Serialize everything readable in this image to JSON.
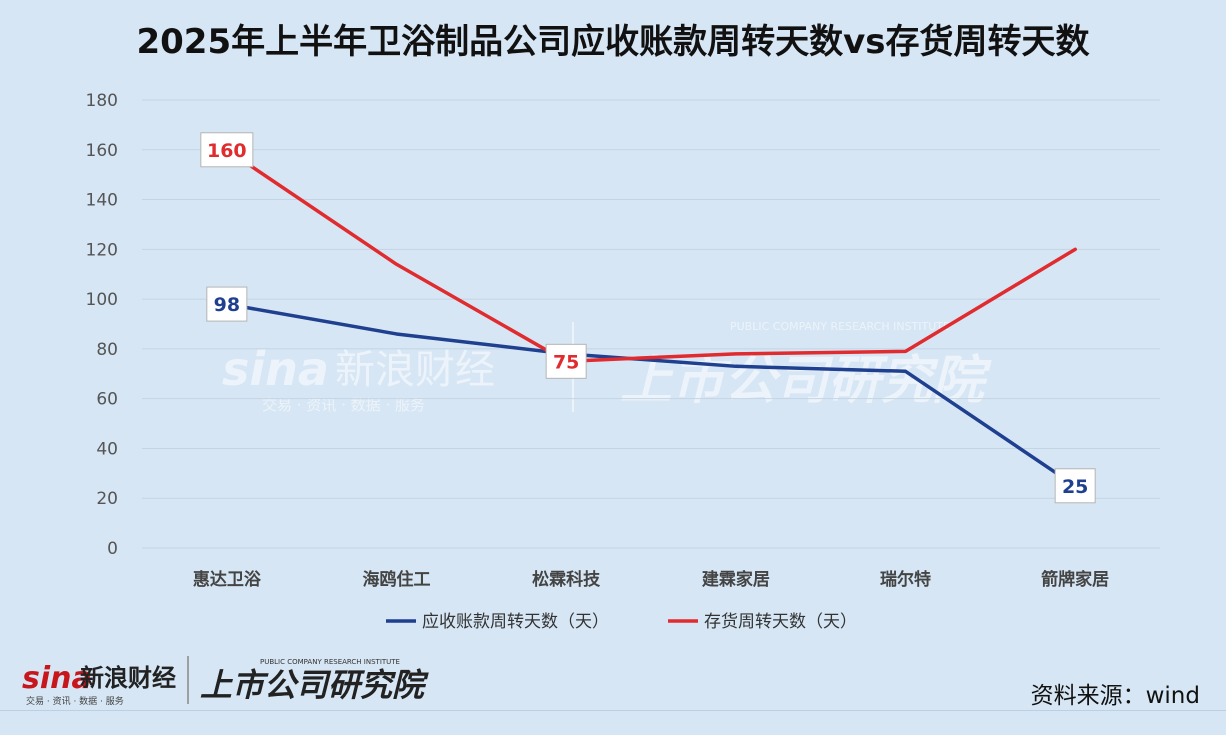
{
  "title": "2025年上半年卫浴制品公司应收账款周转天数vs存货周转天数",
  "source": "资料来源：wind",
  "watermark": {
    "sina_logo": "sina",
    "sina_name": "新浪财经",
    "sina_tagline": "交易 · 资讯 · 数据 · 服务",
    "institute_name": "上市公司研究院",
    "institute_en": "PUBLIC COMPANY RESEARCH INSTITUTE"
  },
  "colors": {
    "receivable": "#1f3f8f",
    "inventory": "#e02b2f",
    "background": "#d6e6f4",
    "grid": "#c3d4e4"
  },
  "chart_data": {
    "type": "line",
    "title": "2025年上半年卫浴制品公司应收账款周转天数vs存货周转天数",
    "categories": [
      "惠达卫浴",
      "海鸥住工",
      "松霖科技",
      "建霖家居",
      "瑞尔特",
      "箭牌家居"
    ],
    "ylim": [
      0,
      180
    ],
    "yticks": [
      0,
      20,
      40,
      60,
      80,
      100,
      120,
      140,
      160,
      180
    ],
    "grid": "horizontal",
    "legend": "bottom",
    "series": [
      {
        "name": "应收账款周转天数（天）",
        "color": "#1f3f8f",
        "values": [
          98,
          86,
          78,
          73,
          71,
          25
        ],
        "labeled_indices": [
          0,
          5
        ]
      },
      {
        "name": "存货周转天数（天）",
        "color": "#e02b2f",
        "values": [
          160,
          114,
          75,
          78,
          79,
          120
        ],
        "labeled_indices": [
          0,
          2
        ]
      }
    ],
    "data_labels": [
      {
        "series": 1,
        "index": 0,
        "text": "160"
      },
      {
        "series": 0,
        "index": 0,
        "text": "98"
      },
      {
        "series": 1,
        "index": 2,
        "text": "75"
      },
      {
        "series": 0,
        "index": 5,
        "text": "25"
      }
    ]
  }
}
